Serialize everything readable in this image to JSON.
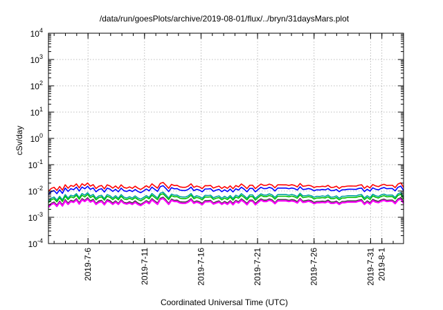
{
  "chart_data": {
    "type": "line",
    "title": "/data/run/goesPlots/archive/2019-08-01/flux/../bryn/31daysMars.plot",
    "xlabel": "Coordinated Universal Time (UTC)",
    "ylabel": "cSv/day",
    "yscale": "log",
    "ylim": [
      0.0001,
      10000
    ],
    "xlim": [
      "2019-07-02T12:00",
      "2019-08-02T22:00"
    ],
    "grid": true,
    "y_ticks": [
      {
        "base": "10",
        "exp": "-4"
      },
      {
        "base": "10",
        "exp": "-3"
      },
      {
        "base": "10",
        "exp": "-2"
      },
      {
        "base": "10",
        "exp": "-1"
      },
      {
        "base": "10",
        "exp": "0"
      },
      {
        "base": "10",
        "exp": "1"
      },
      {
        "base": "10",
        "exp": "2"
      },
      {
        "base": "10",
        "exp": "3"
      },
      {
        "base": "10",
        "exp": "4"
      }
    ],
    "x_ticks": [
      "2019-7-6",
      "2019-7-11",
      "2019-7-16",
      "2019-7-21",
      "2019-7-26",
      "2019-7-31",
      "2019-8-1"
    ],
    "x_tick_dates": [
      "2019-07-06",
      "2019-07-11",
      "2019-07-16",
      "2019-07-21",
      "2019-07-26",
      "2019-07-31",
      "2019-08-01"
    ],
    "series": [
      {
        "color": "#ff0000",
        "values": [
          0.0098,
          0.0125,
          0.0138,
          0.0105,
          0.0148,
          0.0108,
          0.0172,
          0.0127,
          0.0162,
          0.0149,
          0.0186,
          0.0132,
          0.0188,
          0.0161,
          0.0201,
          0.0153,
          0.0174,
          0.0124,
          0.0151,
          0.0162,
          0.0121,
          0.0171,
          0.0155,
          0.0128,
          0.0155,
          0.0124,
          0.0171,
          0.0136,
          0.0128,
          0.0143,
          0.0126,
          0.0152,
          0.0128,
          0.0114,
          0.0133,
          0.0158,
          0.0135,
          0.0187,
          0.0154,
          0.0128,
          0.0195,
          0.0212,
          0.0166,
          0.0126,
          0.0178,
          0.0161,
          0.0164,
          0.0143,
          0.0138,
          0.0138,
          0.0153,
          0.0187,
          0.0137,
          0.0154,
          0.0143,
          0.0123,
          0.0159,
          0.0158,
          0.0162,
          0.0129,
          0.0143,
          0.0153,
          0.0125,
          0.0147,
          0.0126,
          0.0157,
          0.0122,
          0.0161,
          0.0143,
          0.0185,
          0.0155,
          0.0123,
          0.0166,
          0.0166,
          0.0123,
          0.0152,
          0.0183,
          0.0164,
          0.0165,
          0.0182,
          0.0167,
          0.0133,
          0.0172,
          0.0172,
          0.0171,
          0.0171,
          0.0162,
          0.0173,
          0.0163,
          0.0143,
          0.0192,
          0.0151,
          0.0156,
          0.0165,
          0.0156,
          0.0135,
          0.0147,
          0.0145,
          0.0151,
          0.0146,
          0.0164,
          0.0137,
          0.0138,
          0.0152,
          0.0125,
          0.0147,
          0.0147,
          0.0154,
          0.0155,
          0.0154,
          0.0153,
          0.0166,
          0.0172,
          0.0126,
          0.0154,
          0.0131,
          0.0176,
          0.0156,
          0.0146,
          0.0167,
          0.0179,
          0.0162,
          0.0165,
          0.0165,
          0.0134,
          0.0183,
          0.0204,
          0.0138
        ]
      },
      {
        "color": "#0000ff",
        "values": [
          0.0075,
          0.0094,
          0.0104,
          0.0079,
          0.0111,
          0.0081,
          0.0129,
          0.0096,
          0.0122,
          0.0112,
          0.014,
          0.0099,
          0.0141,
          0.0121,
          0.0151,
          0.0115,
          0.0131,
          0.0093,
          0.0114,
          0.0122,
          0.0091,
          0.0128,
          0.0117,
          0.0096,
          0.0116,
          0.0093,
          0.0128,
          0.0102,
          0.0096,
          0.0108,
          0.0095,
          0.0114,
          0.0096,
          0.0086,
          0.01,
          0.0119,
          0.0101,
          0.014,
          0.0116,
          0.0096,
          0.0146,
          0.0159,
          0.0125,
          0.0095,
          0.0134,
          0.0121,
          0.0123,
          0.0108,
          0.0104,
          0.0104,
          0.0115,
          0.014,
          0.0103,
          0.0116,
          0.0108,
          0.0093,
          0.0119,
          0.0119,
          0.0122,
          0.0097,
          0.0108,
          0.0115,
          0.0094,
          0.0111,
          0.0095,
          0.0118,
          0.0092,
          0.0121,
          0.0108,
          0.0139,
          0.0117,
          0.0093,
          0.0125,
          0.0125,
          0.0093,
          0.0114,
          0.0138,
          0.0123,
          0.0124,
          0.0137,
          0.0126,
          0.01,
          0.0129,
          0.0129,
          0.0129,
          0.0129,
          0.0122,
          0.013,
          0.0123,
          0.0108,
          0.0144,
          0.0114,
          0.0117,
          0.0124,
          0.0117,
          0.0102,
          0.0111,
          0.0109,
          0.0114,
          0.011,
          0.0123,
          0.0103,
          0.0104,
          0.0114,
          0.0094,
          0.0111,
          0.0111,
          0.0116,
          0.0117,
          0.0116,
          0.0115,
          0.0125,
          0.0129,
          0.0095,
          0.0116,
          0.0099,
          0.0132,
          0.0117,
          0.011,
          0.0126,
          0.0135,
          0.0122,
          0.0124,
          0.0124,
          0.0101,
          0.0138,
          0.0153,
          0.0104
        ]
      },
      {
        "color": "#00a0a0",
        "values": [
          0.0042,
          0.0053,
          0.0059,
          0.0045,
          0.0063,
          0.0046,
          0.0073,
          0.0054,
          0.0069,
          0.0064,
          0.0079,
          0.0056,
          0.008,
          0.0069,
          0.0086,
          0.0065,
          0.0074,
          0.0053,
          0.0065,
          0.0069,
          0.0051,
          0.0073,
          0.0066,
          0.0054,
          0.0066,
          0.0053,
          0.0073,
          0.0058,
          0.0054,
          0.0061,
          0.0054,
          0.0065,
          0.0054,
          0.0049,
          0.0057,
          0.0067,
          0.0057,
          0.008,
          0.0066,
          0.0054,
          0.0083,
          0.009,
          0.0071,
          0.0054,
          0.0076,
          0.0069,
          0.007,
          0.0061,
          0.0059,
          0.0059,
          0.0065,
          0.008,
          0.0058,
          0.0066,
          0.0061,
          0.0053,
          0.0068,
          0.0067,
          0.0069,
          0.0055,
          0.0061,
          0.0065,
          0.0053,
          0.0063,
          0.0054,
          0.0067,
          0.0052,
          0.0069,
          0.0061,
          0.0079,
          0.0066,
          0.0053,
          0.0071,
          0.0071,
          0.0052,
          0.0065,
          0.0078,
          0.007,
          0.007,
          0.0078,
          0.0071,
          0.0057,
          0.0073,
          0.0073,
          0.0073,
          0.0073,
          0.0069,
          0.0074,
          0.0069,
          0.0061,
          0.0082,
          0.0065,
          0.0066,
          0.007,
          0.0066,
          0.0058,
          0.0063,
          0.0062,
          0.0065,
          0.0062,
          0.007,
          0.0058,
          0.0059,
          0.0065,
          0.0053,
          0.0063,
          0.0063,
          0.0066,
          0.0066,
          0.0066,
          0.0065,
          0.0071,
          0.0073,
          0.0054,
          0.0066,
          0.0056,
          0.0075,
          0.0066,
          0.0062,
          0.0071,
          0.0076,
          0.0069,
          0.007,
          0.007,
          0.0057,
          0.0078,
          0.0087,
          0.0059
        ]
      },
      {
        "color": "#00c000",
        "values": [
          0.0036,
          0.0046,
          0.0051,
          0.0039,
          0.0055,
          0.004,
          0.0063,
          0.0047,
          0.006,
          0.0055,
          0.0069,
          0.0049,
          0.0069,
          0.0059,
          0.0074,
          0.0056,
          0.0064,
          0.0046,
          0.0056,
          0.006,
          0.0045,
          0.0063,
          0.0057,
          0.0047,
          0.0057,
          0.0046,
          0.0063,
          0.005,
          0.0047,
          0.0053,
          0.0047,
          0.0056,
          0.0047,
          0.0042,
          0.0049,
          0.0058,
          0.005,
          0.0069,
          0.0057,
          0.0047,
          0.0072,
          0.0078,
          0.0061,
          0.0047,
          0.0066,
          0.006,
          0.0061,
          0.0053,
          0.0051,
          0.0051,
          0.0056,
          0.0069,
          0.0051,
          0.0057,
          0.0053,
          0.0046,
          0.0059,
          0.0058,
          0.006,
          0.0048,
          0.0053,
          0.0056,
          0.0046,
          0.0054,
          0.0047,
          0.0058,
          0.0045,
          0.0059,
          0.0053,
          0.0068,
          0.0057,
          0.0046,
          0.0061,
          0.0061,
          0.0045,
          0.0056,
          0.0068,
          0.0061,
          0.0061,
          0.0067,
          0.0062,
          0.0049,
          0.0063,
          0.0063,
          0.0063,
          0.0063,
          0.006,
          0.0064,
          0.006,
          0.0053,
          0.0071,
          0.0056,
          0.0058,
          0.0061,
          0.0058,
          0.005,
          0.0054,
          0.0054,
          0.0056,
          0.0054,
          0.006,
          0.0051,
          0.0051,
          0.0056,
          0.0046,
          0.0054,
          0.0054,
          0.0057,
          0.0057,
          0.0057,
          0.0057,
          0.0061,
          0.0064,
          0.0047,
          0.0057,
          0.0048,
          0.0065,
          0.0058,
          0.0054,
          0.0062,
          0.0066,
          0.006,
          0.0061,
          0.0061,
          0.005,
          0.0068,
          0.0075,
          0.0051
        ]
      },
      {
        "color": "#404040",
        "values": [
          0.0027,
          0.0034,
          0.0038,
          0.0029,
          0.0041,
          0.003,
          0.0047,
          0.0035,
          0.0044,
          0.0041,
          0.0051,
          0.0036,
          0.0051,
          0.0044,
          0.0055,
          0.0042,
          0.0048,
          0.0034,
          0.0042,
          0.0044,
          0.0033,
          0.0047,
          0.0043,
          0.0035,
          0.0042,
          0.0034,
          0.0047,
          0.0037,
          0.0035,
          0.0039,
          0.0035,
          0.0042,
          0.0035,
          0.0031,
          0.0036,
          0.0043,
          0.0037,
          0.0051,
          0.0042,
          0.0035,
          0.0053,
          0.0058,
          0.0046,
          0.0034,
          0.0049,
          0.0044,
          0.0045,
          0.0039,
          0.0038,
          0.0038,
          0.0042,
          0.0051,
          0.0038,
          0.0042,
          0.0039,
          0.0034,
          0.0043,
          0.0043,
          0.0044,
          0.0035,
          0.0039,
          0.0042,
          0.0034,
          0.004,
          0.0035,
          0.0043,
          0.0034,
          0.0044,
          0.0039,
          0.005,
          0.0042,
          0.0034,
          0.0045,
          0.0045,
          0.0034,
          0.0042,
          0.005,
          0.0045,
          0.0045,
          0.005,
          0.0046,
          0.0036,
          0.0047,
          0.0047,
          0.0047,
          0.0047,
          0.0044,
          0.0047,
          0.0045,
          0.0039,
          0.0052,
          0.0041,
          0.0043,
          0.0045,
          0.0043,
          0.0037,
          0.004,
          0.004,
          0.0041,
          0.004,
          0.0045,
          0.0038,
          0.0038,
          0.0041,
          0.0034,
          0.004,
          0.004,
          0.0042,
          0.0042,
          0.0042,
          0.0042,
          0.0045,
          0.0047,
          0.0034,
          0.0042,
          0.0036,
          0.0048,
          0.0043,
          0.004,
          0.0046,
          0.0049,
          0.0044,
          0.0045,
          0.0045,
          0.0037,
          0.005,
          0.0056,
          0.0038
        ]
      },
      {
        "color": "#ff00ff",
        "values": [
          0.0024,
          0.0031,
          0.0034,
          0.0026,
          0.0037,
          0.0027,
          0.0042,
          0.0031,
          0.004,
          0.0037,
          0.0046,
          0.0032,
          0.0046,
          0.004,
          0.0049,
          0.0038,
          0.0043,
          0.0031,
          0.0037,
          0.004,
          0.003,
          0.0042,
          0.0038,
          0.0031,
          0.0038,
          0.0031,
          0.0042,
          0.0034,
          0.0032,
          0.0035,
          0.0031,
          0.0037,
          0.0031,
          0.0028,
          0.0033,
          0.0039,
          0.0033,
          0.0046,
          0.0038,
          0.0031,
          0.0048,
          0.0052,
          0.0041,
          0.0031,
          0.0044,
          0.004,
          0.004,
          0.0035,
          0.0034,
          0.0034,
          0.0038,
          0.0046,
          0.0034,
          0.0038,
          0.0035,
          0.003,
          0.0039,
          0.0039,
          0.004,
          0.0032,
          0.0035,
          0.0038,
          0.0031,
          0.0036,
          0.0031,
          0.0039,
          0.003,
          0.004,
          0.0035,
          0.0045,
          0.0038,
          0.003,
          0.0041,
          0.0041,
          0.003,
          0.0037,
          0.0045,
          0.004,
          0.004,
          0.0045,
          0.0041,
          0.0033,
          0.0042,
          0.0042,
          0.0042,
          0.0042,
          0.004,
          0.0042,
          0.004,
          0.0035,
          0.0047,
          0.0037,
          0.0038,
          0.0041,
          0.0038,
          0.0033,
          0.0036,
          0.0036,
          0.0037,
          0.0036,
          0.004,
          0.0034,
          0.0034,
          0.0037,
          0.0031,
          0.0036,
          0.0036,
          0.0038,
          0.0038,
          0.0038,
          0.0038,
          0.0041,
          0.0042,
          0.0031,
          0.0038,
          0.0032,
          0.0043,
          0.0038,
          0.0036,
          0.0041,
          0.0044,
          0.004,
          0.0041,
          0.0041,
          0.0033,
          0.0045,
          0.005,
          0.0034
        ]
      }
    ]
  }
}
